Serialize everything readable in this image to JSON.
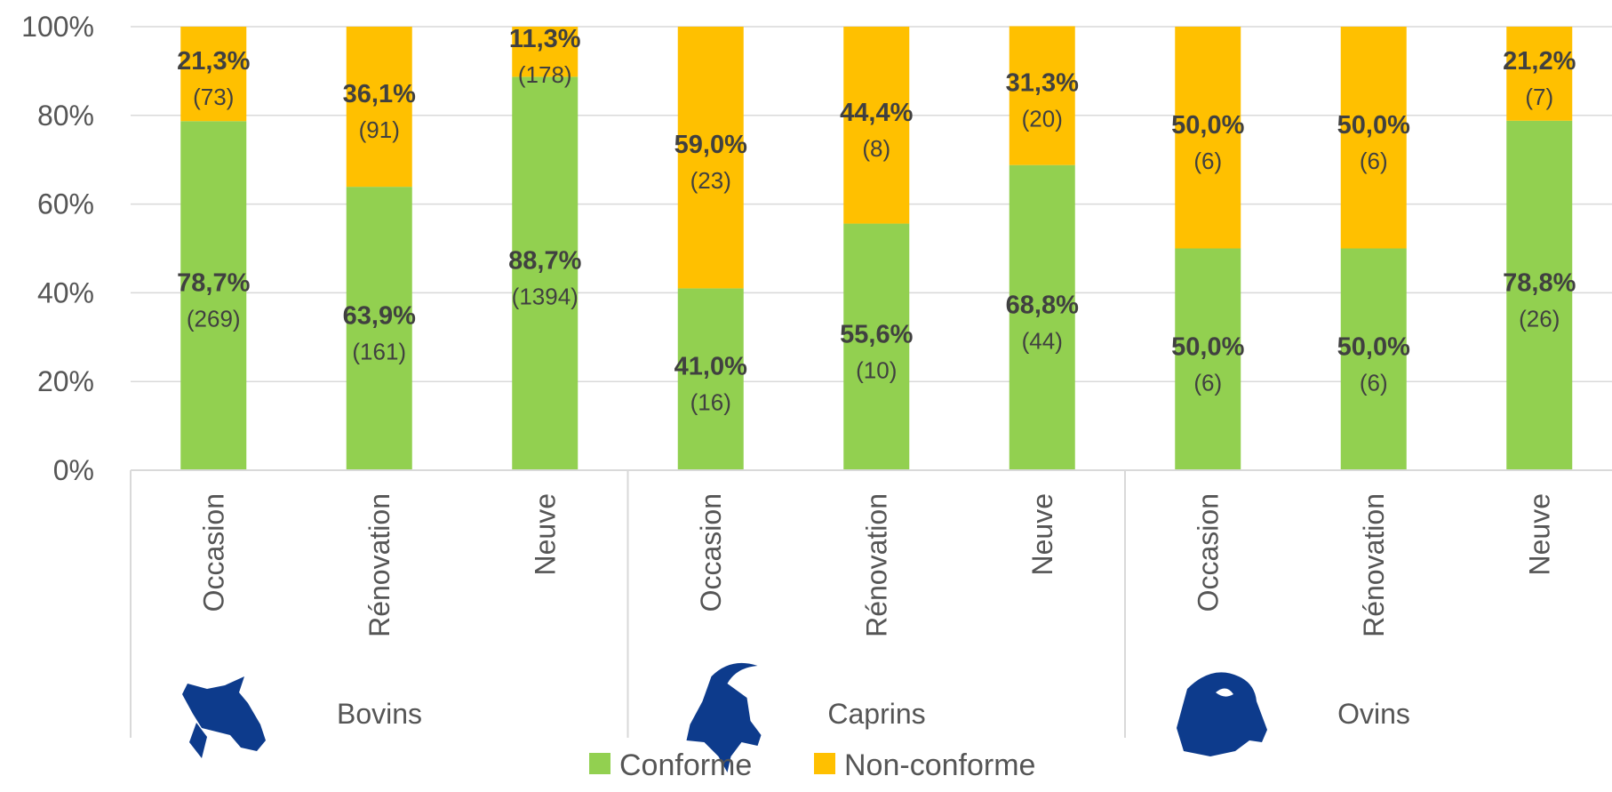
{
  "chart_data": {
    "type": "bar",
    "stacked": true,
    "percent_stacked": true,
    "title": "",
    "xlabel": "",
    "ylabel": "",
    "ylim": [
      0,
      100
    ],
    "y_ticks": [
      "0%",
      "20%",
      "40%",
      "60%",
      "80%",
      "100%"
    ],
    "grid": true,
    "legend_position": "bottom",
    "groups": [
      {
        "name": "Bovins",
        "icon": "cow-icon"
      },
      {
        "name": "Caprins",
        "icon": "goat-icon"
      },
      {
        "name": "Ovins",
        "icon": "sheep-icon"
      }
    ],
    "categories": [
      "Occasion",
      "Rénovation",
      "Neuve",
      "Occasion",
      "Rénovation",
      "Neuve",
      "Occasion",
      "Rénovation",
      "Neuve"
    ],
    "series": [
      {
        "name": "Conforme",
        "color": "#92d050",
        "values": [
          78.7,
          63.9,
          88.7,
          41.0,
          55.6,
          68.8,
          50.0,
          50.0,
          78.8
        ],
        "labels": [
          "78,7%",
          "63,9%",
          "88,7%",
          "41,0%",
          "55,6%",
          "68,8%",
          "50,0%",
          "50,0%",
          "78,8%"
        ],
        "counts": [
          "(269)",
          "(161)",
          "(1394)",
          "(16)",
          "(10)",
          "(44)",
          "(6)",
          "(6)",
          "(26)"
        ]
      },
      {
        "name": "Non-conforme",
        "color": "#ffc000",
        "values": [
          21.3,
          36.1,
          11.3,
          59.0,
          44.4,
          31.3,
          50.0,
          50.0,
          21.2
        ],
        "labels": [
          "21,3%",
          "36,1%",
          "11,3%",
          "59,0%",
          "44,4%",
          "31,3%",
          "50,0%",
          "50,0%",
          "21,2%"
        ],
        "counts": [
          "(73)",
          "(91)",
          "(178)",
          "(23)",
          "(8)",
          "(20)",
          "(6)",
          "(6)",
          "(7)"
        ]
      }
    ]
  }
}
